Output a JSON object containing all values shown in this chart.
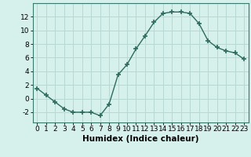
{
  "x": [
    0,
    1,
    2,
    3,
    4,
    5,
    6,
    7,
    8,
    9,
    10,
    11,
    12,
    13,
    14,
    15,
    16,
    17,
    18,
    19,
    20,
    21,
    22,
    23
  ],
  "y": [
    1.5,
    0.5,
    -0.5,
    -1.5,
    -2.0,
    -2.0,
    -2.0,
    -2.5,
    -0.8,
    3.5,
    5.0,
    7.3,
    9.2,
    11.2,
    12.5,
    12.7,
    12.7,
    12.5,
    11.0,
    8.5,
    7.5,
    7.0,
    6.7,
    5.8
  ],
  "line_color": "#2e6b5e",
  "marker": "+",
  "marker_size": 4,
  "marker_linewidth": 1.2,
  "line_width": 1.0,
  "xlabel": "Humidex (Indice chaleur)",
  "xlabel_fontsize": 7.5,
  "xlim": [
    -0.5,
    23.5
  ],
  "ylim": [
    -3.5,
    14.0
  ],
  "yticks": [
    -2,
    0,
    2,
    4,
    6,
    8,
    10,
    12
  ],
  "xticks": [
    0,
    1,
    2,
    3,
    4,
    5,
    6,
    7,
    8,
    9,
    10,
    11,
    12,
    13,
    14,
    15,
    16,
    17,
    18,
    19,
    20,
    21,
    22,
    23
  ],
  "xtick_labels": [
    "0",
    "1",
    "2",
    "3",
    "4",
    "5",
    "6",
    "7",
    "8",
    "9",
    "10",
    "11",
    "12",
    "13",
    "14",
    "15",
    "16",
    "17",
    "18",
    "19",
    "20",
    "21",
    "22",
    "23"
  ],
  "grid_color": "#b8d8d4",
  "bg_color": "#d6f0ec",
  "tick_fontsize": 6.5,
  "fig_bg": "#d6f0ec",
  "spine_color": "#3a7a6e"
}
